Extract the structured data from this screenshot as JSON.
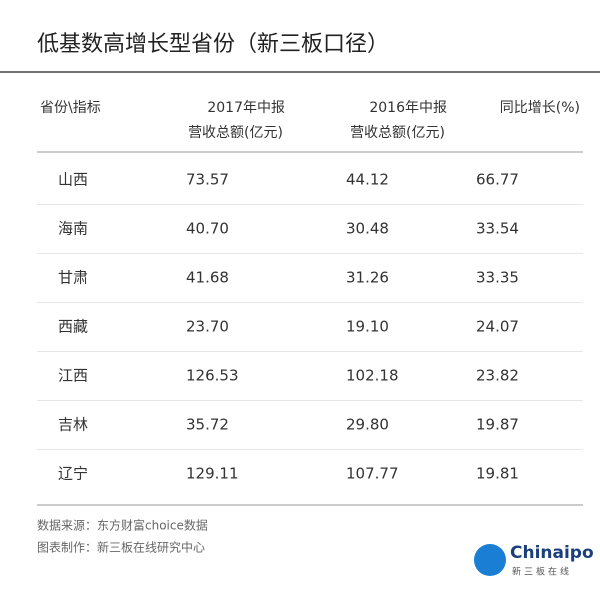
{
  "header": {
    "title": "低基数高增长型省份（新三板口径）"
  },
  "table": {
    "columns": [
      {
        "line1": "省份\\指标",
        "line2": null
      },
      {
        "line1": "2017年中报",
        "line2": "营收总额(亿元)"
      },
      {
        "line1": "2016年中报",
        "line2": "营收总额(亿元)"
      },
      {
        "line1": "同比增长(%)",
        "line2": null
      }
    ],
    "rows": [
      [
        "山西",
        "73.57",
        "44.12",
        "66.77"
      ],
      [
        "海南",
        "40.70",
        "30.48",
        "33.54"
      ],
      [
        "甘肃",
        "41.68",
        "31.26",
        "33.35"
      ],
      [
        "西藏",
        "23.70",
        "19.10",
        "24.07"
      ],
      [
        "江西",
        "126.53",
        "102.18",
        "23.82"
      ],
      [
        "吉林",
        "35.72",
        "29.80",
        "19.87"
      ],
      [
        "辽宁",
        "129.11",
        "107.77",
        "19.81"
      ]
    ]
  },
  "footer": {
    "source": "数据来源：东方财富choice数据",
    "credit": "图表制作：新三板在线研究中心"
  },
  "logo": {
    "brand": "Chinaipo",
    "subtitle": "新三板在线"
  }
}
